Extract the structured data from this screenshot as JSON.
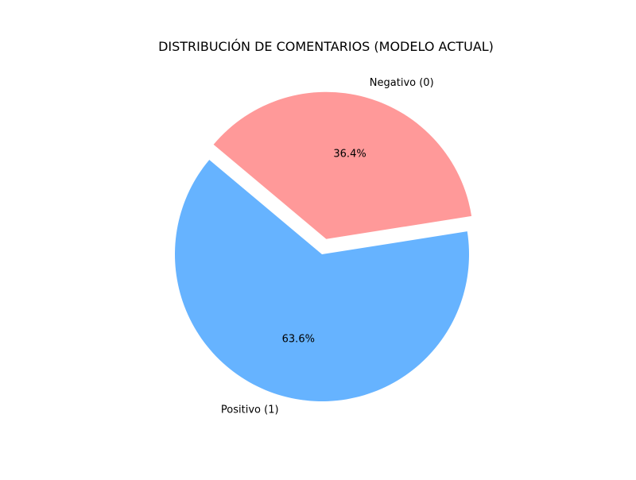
{
  "chart_data": {
    "type": "pie",
    "title": "DISTRIBUCIÓN DE COMENTARIOS (MODELO ACTUAL)",
    "labels": [
      "Positivo (1)",
      "Negativo (0)"
    ],
    "values": [
      63.6,
      36.4
    ],
    "percent_labels": [
      "63.6%",
      "36.4%"
    ],
    "colors": [
      "#66b3ff",
      "#ff9999"
    ],
    "exploded": [
      false,
      true
    ],
    "legend": "none",
    "grid": false
  }
}
